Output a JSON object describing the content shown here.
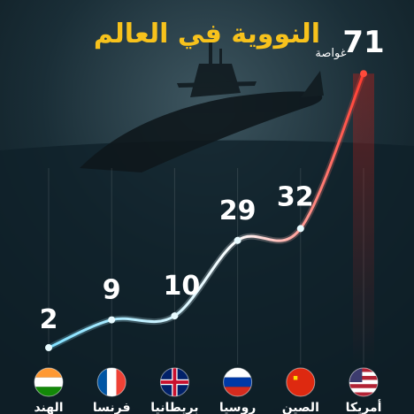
{
  "title": "النووية في العالم",
  "chart_data": {
    "type": "line",
    "categories": [
      "الهند",
      "فرنسا",
      "بريطانيا",
      "روسيا",
      "الصين",
      "أمريكا"
    ],
    "values": [
      2,
      9,
      10,
      29,
      32,
      71
    ],
    "unit": "غواصة"
  }
}
